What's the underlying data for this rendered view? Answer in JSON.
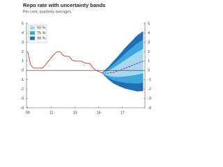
{
  "chart_data": {
    "type": "fan",
    "title": "Repo rate with uncertainty bands",
    "subtitle": "Per cent, quarterly averages",
    "xlim": [
      2008.9,
      2018.9
    ],
    "xticks": [
      {
        "value": 2009,
        "label": "09"
      },
      {
        "value": 2011,
        "label": "11"
      },
      {
        "value": 2013,
        "label": "13"
      },
      {
        "value": 2015,
        "label": "15"
      },
      {
        "value": 2017,
        "label": "17"
      }
    ],
    "ylim": [
      -4,
      5
    ],
    "yticks": [
      -4,
      -3,
      -2,
      -1,
      0,
      1,
      2,
      3,
      4,
      5
    ],
    "series": [
      {
        "name": "Repo rate",
        "color": "#c0392b",
        "x": [
          2009.0,
          2009.25,
          2009.5,
          2009.75,
          2010.0,
          2010.25,
          2010.5,
          2010.75,
          2011.0,
          2011.25,
          2011.5,
          2011.75,
          2012.0,
          2012.25,
          2012.5,
          2012.75,
          2013.0,
          2013.25,
          2013.5,
          2013.75,
          2014.0,
          2014.25,
          2014.5,
          2014.75,
          2015.0,
          2015.25
        ],
        "values": [
          2.0,
          0.6,
          0.25,
          0.25,
          0.25,
          0.25,
          0.6,
          1.0,
          1.35,
          1.75,
          2.0,
          2.0,
          1.6,
          1.5,
          1.5,
          1.1,
          1.0,
          1.0,
          1.0,
          0.85,
          0.75,
          0.75,
          0.3,
          0.0,
          -0.1,
          -0.25
        ]
      },
      {
        "name": "Forecast",
        "color": "#8b1a2b",
        "dashed": true,
        "x": [
          2015.25,
          2015.75,
          2016.25,
          2016.75,
          2017.25,
          2017.75,
          2018.25,
          2018.75
        ],
        "values": [
          -0.25,
          -0.3,
          -0.2,
          0,
          0.25,
          0.5,
          0.75,
          1.0
        ]
      }
    ],
    "bands": [
      {
        "name": "90 %",
        "color": "#1f6fb2",
        "x": [
          2015.25,
          2015.75,
          2016.25,
          2016.75,
          2017.25,
          2017.75,
          2018.25,
          2018.75
        ],
        "lower": [
          -0.25,
          -0.9,
          -1.4,
          -1.7,
          -1.95,
          -2.1,
          -2.25,
          -2.2
        ],
        "upper": [
          -0.25,
          0.3,
          1.0,
          1.7,
          2.45,
          3.1,
          3.75,
          4.2
        ]
      },
      {
        "name": "75 %",
        "color": "#3ea6df",
        "x": [
          2015.25,
          2015.75,
          2016.25,
          2016.75,
          2017.25,
          2017.75,
          2018.25,
          2018.75
        ],
        "lower": [
          -0.25,
          -0.73,
          -1.06,
          -1.22,
          -1.33,
          -1.37,
          -1.41,
          -1.3
        ],
        "upper": [
          -0.25,
          0.13,
          0.66,
          1.22,
          1.83,
          2.37,
          2.91,
          3.3
        ]
      },
      {
        "name": "50 %",
        "color": "#a6d7f2",
        "x": [
          2015.25,
          2015.75,
          2016.25,
          2016.75,
          2017.25,
          2017.75,
          2018.25,
          2018.75
        ],
        "lower": [
          -0.25,
          -0.54,
          -0.68,
          -0.68,
          -0.63,
          -0.54,
          -0.45,
          -0.3
        ],
        "upper": [
          -0.25,
          -0.06,
          0.28,
          0.68,
          1.13,
          1.54,
          1.95,
          2.3
        ]
      }
    ]
  }
}
